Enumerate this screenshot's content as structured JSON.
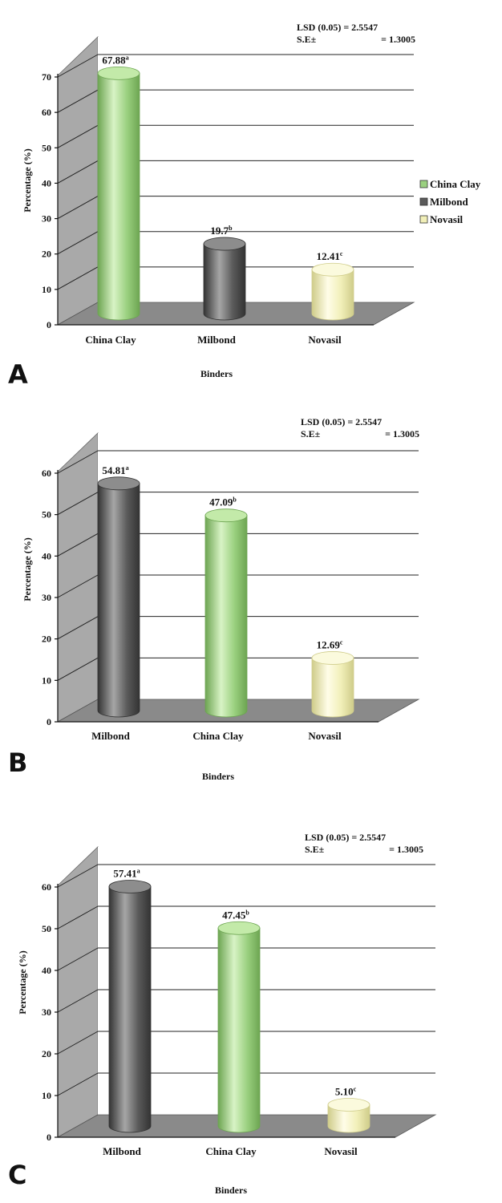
{
  "colors": {
    "China Clay": {
      "body": "#9ad07f",
      "light": "#d8f3c5",
      "top": "#c3eaa9",
      "dark": "#6da552"
    },
    "Milbond": {
      "body": "#5a5a5a",
      "light": "#a6a6a6",
      "top": "#8d8d8d",
      "dark": "#333333"
    },
    "Novasil": {
      "body": "#f1efb8",
      "light": "#fffde8",
      "top": "#fbfadd",
      "dark": "#cfcc8a"
    },
    "wall": "#a9a9a9",
    "floor": "#8a8a8a",
    "grid": "#222222"
  },
  "legend": {
    "items": [
      {
        "label": "China Clay",
        "color_key": "China Clay"
      },
      {
        "label": "Milbond",
        "color_key": "Milbond"
      },
      {
        "label": "Novasil",
        "color_key": "Novasil"
      }
    ]
  },
  "chart_data": [
    {
      "type": "bar",
      "panel_label": "A",
      "categories": [
        "China Clay",
        "Milbond",
        "Novasil"
      ],
      "values": [
        67.88,
        19.7,
        12.41
      ],
      "value_labels": [
        "67.88",
        "19.7",
        "12.41"
      ],
      "significance": [
        "a",
        "b",
        "c"
      ],
      "xlabel": "Binders",
      "ylabel": "Percentage (%)",
      "ylim": [
        0,
        70
      ],
      "yticks": [
        0,
        10,
        20,
        30,
        40,
        50,
        60,
        70
      ],
      "grid": true,
      "stats": {
        "lsd_label": "LSD (0.05) = 2.5547",
        "se_label": "S.E±",
        "se_value": "= 1.3005"
      }
    },
    {
      "type": "bar",
      "panel_label": "B",
      "categories": [
        "Milbond",
        "China Clay",
        "Novasil"
      ],
      "values": [
        54.81,
        47.09,
        12.69
      ],
      "value_labels": [
        "54.81",
        "47.09",
        "12.69"
      ],
      "significance": [
        "a",
        "b",
        "c"
      ],
      "xlabel": "Binders",
      "ylabel": "Percentage (%)",
      "ylim": [
        0,
        60
      ],
      "yticks": [
        0,
        10,
        20,
        30,
        40,
        50,
        60
      ],
      "grid": true,
      "stats": {
        "lsd_label": "LSD (0.05) = 2.5547",
        "se_label": "S.E±",
        "se_value": "= 1.3005"
      }
    },
    {
      "type": "bar",
      "panel_label": "C",
      "categories": [
        "Milbond",
        "China Clay",
        "Novasil"
      ],
      "values": [
        57.41,
        47.45,
        5.1
      ],
      "value_labels": [
        "57.41",
        "47.45",
        "5.10"
      ],
      "significance": [
        "a",
        "b",
        "c"
      ],
      "xlabel": "Binders",
      "ylabel": "Percentage (%)",
      "ylim": [
        0,
        60
      ],
      "yticks": [
        0,
        10,
        20,
        30,
        40,
        50,
        60
      ],
      "grid": true,
      "stats": {
        "lsd_label": "LSD (0.05) = 2.5547",
        "se_label": "S.E±",
        "se_value": "= 1.3005"
      }
    }
  ]
}
